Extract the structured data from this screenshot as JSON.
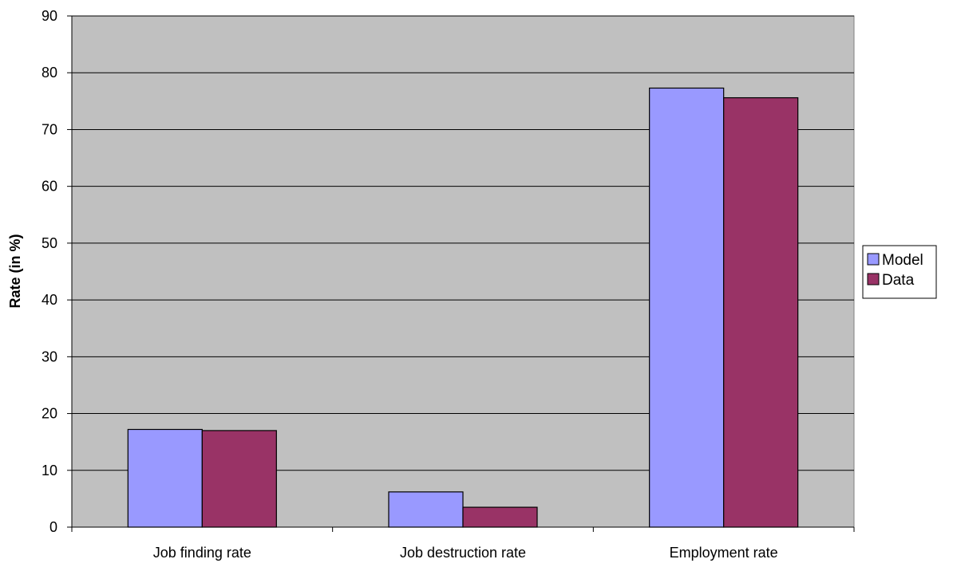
{
  "chart_data": {
    "type": "bar",
    "title": "",
    "xlabel": "",
    "ylabel": "Rate (in %)",
    "ylim": [
      0,
      90
    ],
    "yticks": [
      0,
      10,
      20,
      30,
      40,
      50,
      60,
      70,
      80,
      90
    ],
    "categories": [
      "Job finding rate",
      "Job destruction rate",
      "Employment rate"
    ],
    "series": [
      {
        "name": "Model",
        "values": [
          17.2,
          6.2,
          77.3
        ],
        "color": "#9999ff"
      },
      {
        "name": "Data",
        "values": [
          17.0,
          3.5,
          75.6
        ],
        "color": "#993366"
      }
    ],
    "grid": "horizontal",
    "legend_position": "right",
    "plot_background": "#c0c0c0"
  }
}
